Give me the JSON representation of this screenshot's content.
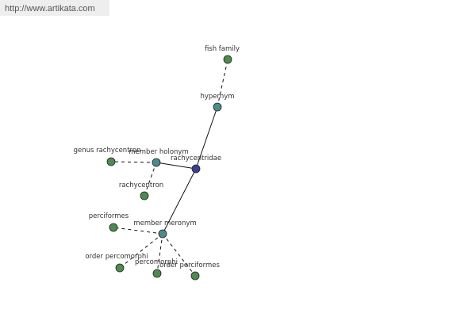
{
  "header": {
    "url": "http://www.artikata.com"
  },
  "nodes": [
    {
      "label": "rachycentridae"
    },
    {
      "label": "hypernym"
    },
    {
      "label": "fish family"
    },
    {
      "label": "member holonym"
    },
    {
      "label": "genus rachycentron"
    },
    {
      "label": "rachycentron"
    },
    {
      "label": "member meronym"
    },
    {
      "label": "perciformes"
    },
    {
      "label": "order percomorphi"
    },
    {
      "label": "percomorphi"
    },
    {
      "label": "order perciformes"
    }
  ]
}
